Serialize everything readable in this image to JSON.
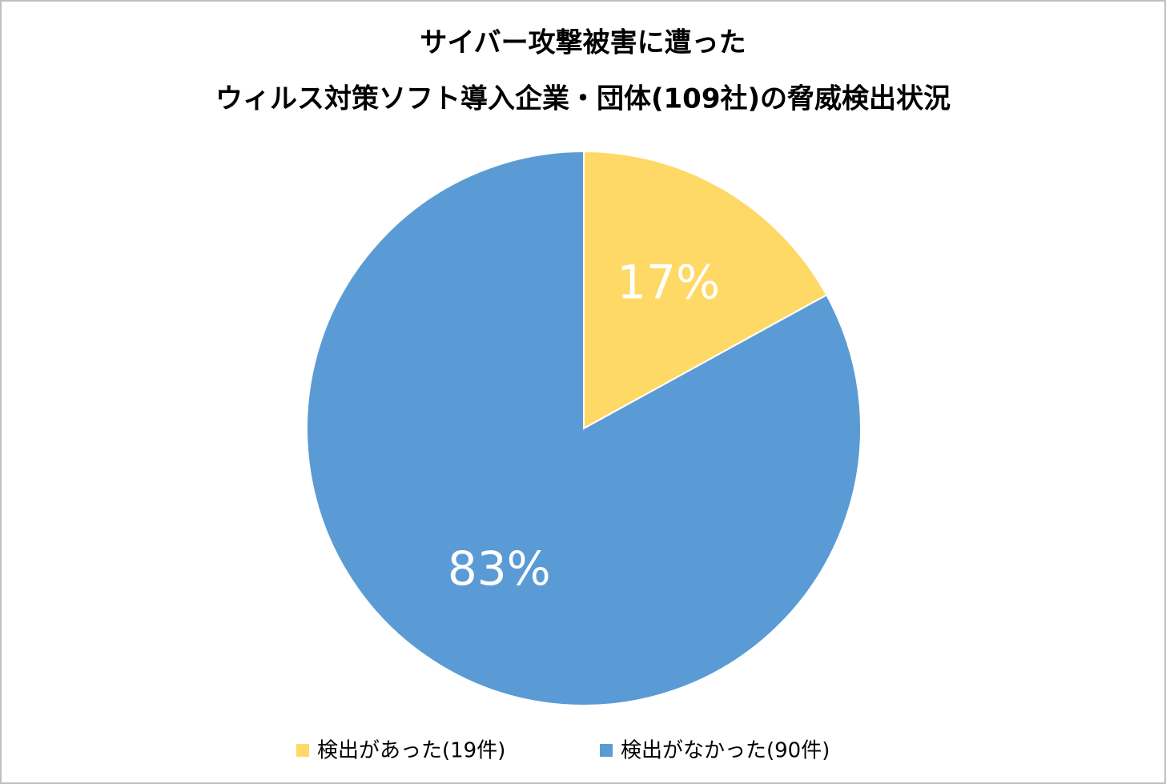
{
  "chart_data": {
    "type": "pie",
    "title": [
      "サイバー攻撃被害に遭った",
      "ウィルス対策ソフト導入企業・団体(109社)の脅威検出状況"
    ],
    "series": [
      {
        "name": "検出があった(19件)",
        "color": "#ffd966",
        "values": [
          17
        ],
        "value_labels": [
          "17%"
        ]
      },
      {
        "name": "検出がなかった(90件)",
        "color": "#5b9bd5",
        "values": [
          83
        ],
        "value_labels": [
          "83%"
        ]
      }
    ],
    "legend": "bottom"
  }
}
